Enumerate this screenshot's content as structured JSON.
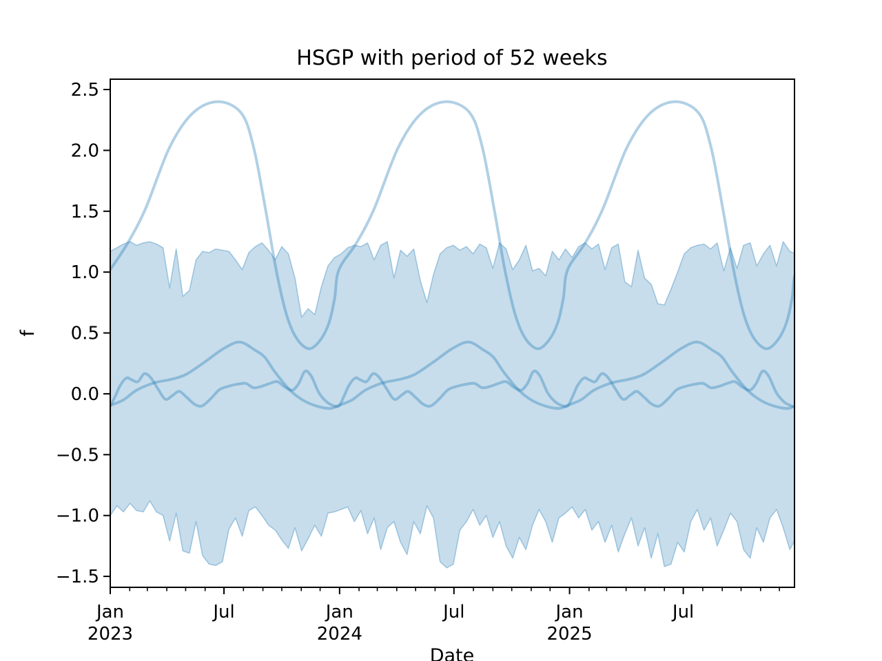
{
  "title": "HSGP with period of 52 weeks",
  "xlabel": "Date",
  "ylabel": "f",
  "colors": {
    "band_fill": "rgba(31,119,180,0.25)",
    "band_edge": "rgba(31,119,180,0.35)",
    "sample_line": "rgba(31,119,180,0.35)",
    "axis": "#000000",
    "background": "#ffffff"
  },
  "chart_data": {
    "type": "line",
    "title": "HSGP with period of 52 weeks",
    "xlabel": "Date",
    "ylabel": "f",
    "x_unit": "days since Jan 2023",
    "x_range_days": [
      0,
      1089
    ],
    "ylim": [
      -1.59,
      2.585
    ],
    "grid": false,
    "legend": "none",
    "period_days": 364,
    "yticks": [
      2.5,
      2.0,
      1.5,
      1.0,
      0.5,
      0.0,
      -0.5,
      -1.0,
      -1.5
    ],
    "ytick_labels": [
      "2.5",
      "2.0",
      "1.5",
      "1.0",
      "0.5",
      "0.0",
      "−0.5",
      "−1.0",
      "−1.5"
    ],
    "xticks_major": [
      {
        "day": 0,
        "line1": "Jan",
        "line2": "2023"
      },
      {
        "day": 181,
        "line1": "Jul",
        "line2": ""
      },
      {
        "day": 365,
        "line1": "Jan",
        "line2": "2024"
      },
      {
        "day": 547,
        "line1": "Jul",
        "line2": ""
      },
      {
        "day": 731,
        "line1": "Jan",
        "line2": "2025"
      },
      {
        "day": 912,
        "line1": "Jul",
        "line2": ""
      }
    ],
    "xticks_minor_days": [
      31,
      59,
      90,
      120,
      151,
      212,
      243,
      273,
      304,
      334,
      396,
      425,
      456,
      486,
      517,
      578,
      609,
      639,
      670,
      700,
      762,
      790,
      821,
      851,
      882,
      943,
      974,
      1004,
      1035,
      1065
    ],
    "series": [
      {
        "name": "posterior-sample-large",
        "periodic": true,
        "keyframe_days": [
          0,
          28,
          56,
          94,
          130,
          170,
          208,
          228,
          247,
          264,
          280,
          296,
          316,
          334,
          348,
          357
        ],
        "keyframe_values": [
          1.02,
          1.24,
          1.52,
          2.02,
          2.3,
          2.4,
          2.31,
          2.03,
          1.52,
          1.02,
          0.66,
          0.46,
          0.37,
          0.44,
          0.58,
          0.78
        ]
      },
      {
        "name": "posterior-sample-medium",
        "periodic": true,
        "keyframe_days": [
          0,
          21,
          42,
          70,
          98,
          121,
          150,
          180,
          206,
          230,
          246,
          262,
          286,
          306,
          328,
          350
        ],
        "keyframe_values": [
          -0.095,
          -0.05,
          0.03,
          0.09,
          0.12,
          0.16,
          0.26,
          0.37,
          0.425,
          0.36,
          0.3,
          0.18,
          0.03,
          -0.05,
          -0.1,
          -0.12
        ]
      },
      {
        "name": "posterior-sample-small",
        "periodic": true,
        "keyframe_days": [
          0,
          8,
          16,
          26,
          34,
          44,
          54,
          64,
          76,
          88,
          100,
          110,
          122,
          134,
          146,
          160,
          174,
          190,
          204,
          216,
          228,
          240,
          254,
          266,
          278,
          290,
          300,
          310,
          320,
          332,
          344,
          354
        ],
        "keyframe_values": [
          -0.1,
          -0.02,
          0.07,
          0.13,
          0.115,
          0.1,
          0.165,
          0.135,
          0.04,
          -0.045,
          -0.01,
          0.02,
          -0.03,
          -0.085,
          -0.1,
          -0.04,
          0.035,
          0.065,
          0.08,
          0.085,
          0.05,
          0.06,
          0.085,
          0.1,
          0.055,
          0.03,
          0.085,
          0.185,
          0.145,
          0.01,
          -0.065,
          -0.095
        ]
      }
    ],
    "band": {
      "name": "hdi-band",
      "x_step_days": 10.5,
      "upper": [
        1.17,
        1.2,
        1.23,
        1.25,
        1.22,
        1.24,
        1.25,
        1.23,
        1.2,
        0.87,
        1.19,
        0.8,
        0.85,
        1.1,
        1.17,
        1.16,
        1.19,
        1.18,
        1.17,
        1.1,
        1.02,
        1.16,
        1.21,
        1.24,
        1.18,
        1.1,
        1.21,
        1.15,
        0.95,
        0.63,
        0.7,
        0.65,
        0.88,
        1.05,
        1.12,
        1.15,
        1.2,
        1.22,
        1.21,
        1.24,
        1.1,
        1.22,
        1.25,
        0.95,
        1.18,
        1.13,
        1.19,
        0.93,
        0.75,
        0.98,
        1.15,
        1.2,
        1.22,
        1.18,
        1.21,
        1.15,
        1.23,
        1.2,
        1.03,
        1.24,
        1.19,
        1.02,
        1.1,
        1.22,
        1.01,
        1.03,
        0.97,
        1.17,
        1.1,
        1.19,
        1.12,
        1.21,
        1.24,
        1.19,
        1.23,
        1.02,
        1.2,
        1.23,
        0.92,
        0.88,
        1.18,
        0.95,
        0.9,
        0.74,
        0.73,
        0.86,
        1.0,
        1.15,
        1.2,
        1.22,
        1.23,
        1.19,
        1.24,
        1.01,
        1.2,
        1.03,
        1.22,
        1.24,
        1.05,
        1.15,
        1.22,
        1.05,
        1.25,
        1.17,
        1.15
      ],
      "lower": [
        -1.0,
        -0.92,
        -0.97,
        -0.9,
        -0.96,
        -0.97,
        -0.88,
        -0.97,
        -1.0,
        -1.21,
        -0.98,
        -1.29,
        -1.31,
        -1.05,
        -1.33,
        -1.4,
        -1.41,
        -1.38,
        -1.11,
        -1.02,
        -1.17,
        -0.96,
        -0.93,
        -1.0,
        -1.08,
        -1.12,
        -1.2,
        -1.27,
        -1.1,
        -1.29,
        -1.19,
        -1.08,
        -1.17,
        -0.98,
        -0.97,
        -0.95,
        -0.93,
        -1.05,
        -0.96,
        -1.15,
        -1.02,
        -1.28,
        -1.1,
        -1.05,
        -1.22,
        -1.32,
        -1.05,
        -1.15,
        -0.92,
        -1.02,
        -1.38,
        -1.43,
        -1.4,
        -1.12,
        -1.05,
        -0.95,
        -1.08,
        -1.0,
        -1.18,
        -1.05,
        -1.25,
        -1.35,
        -1.18,
        -1.28,
        -1.08,
        -0.95,
        -1.05,
        -1.22,
        -1.02,
        -0.98,
        -0.93,
        -1.02,
        -0.95,
        -1.12,
        -1.05,
        -1.22,
        -1.08,
        -1.3,
        -1.15,
        -1.02,
        -1.25,
        -1.1,
        -1.35,
        -1.15,
        -1.42,
        -1.4,
        -1.22,
        -1.3,
        -1.05,
        -0.95,
        -1.12,
        -1.02,
        -1.25,
        -1.12,
        -0.98,
        -1.05,
        -1.28,
        -1.35,
        -1.1,
        -1.22,
        -1.02,
        -0.95,
        -1.1,
        -1.28,
        -1.18
      ]
    }
  }
}
